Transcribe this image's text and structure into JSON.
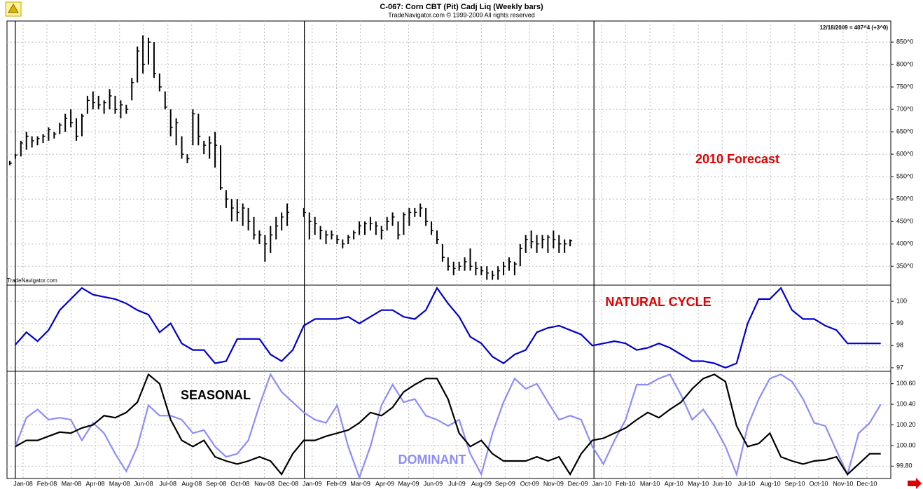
{
  "chart_data": [
    {
      "type": "ohlc",
      "title": "C-067:  Corn CBT (Pit) Cadj Liq  (Weekly bars)",
      "subtitle": "TradeNavigator.com © 1999-2009 All rights reserved",
      "last_quote": "12/18/2009 = 407^4 (+3^0)",
      "watermark": "TradeNavigator.com",
      "color": "#000000",
      "year_lines": [
        0,
        52.1,
        104.3
      ],
      "xlim": [
        -1.5,
        157.8
      ],
      "ylim": [
        308,
        897
      ],
      "yticks": [
        {
          "value": 350,
          "label": "350^0"
        },
        {
          "value": 400,
          "label": "400^0"
        },
        {
          "value": 450,
          "label": "450^0"
        },
        {
          "value": 500,
          "label": "500^0"
        },
        {
          "value": 550,
          "label": "550^0"
        },
        {
          "value": 600,
          "label": "600^0"
        },
        {
          "value": 650,
          "label": "650^0"
        },
        {
          "value": 700,
          "label": "700^0"
        },
        {
          "value": 750,
          "label": "750^0"
        },
        {
          "value": 800,
          "label": "800^0"
        },
        {
          "value": 850,
          "label": "850^0"
        }
      ],
      "annotations": [
        {
          "text": "2010 Forecast",
          "color": "#e00000"
        }
      ],
      "x": [
        -1,
        0,
        1,
        2,
        3,
        4,
        5,
        6,
        7,
        8,
        9,
        10,
        11,
        12,
        13,
        14,
        15,
        16,
        17,
        18,
        19,
        20,
        21,
        22,
        23,
        24,
        25,
        26,
        27,
        28,
        29,
        30,
        31,
        32,
        33,
        34,
        35,
        36,
        37,
        38,
        39,
        40,
        41,
        42,
        43,
        44,
        45,
        46,
        47,
        48,
        49,
        52,
        53,
        54,
        55,
        56,
        57,
        58,
        59,
        60,
        61,
        62,
        63,
        64,
        65,
        66,
        67,
        68,
        69,
        70,
        71,
        72,
        73,
        74,
        75,
        76,
        77,
        78,
        79,
        80,
        81,
        82,
        83,
        84,
        85,
        86,
        87,
        88,
        89,
        90,
        91,
        92,
        93,
        94,
        95,
        96,
        97,
        98,
        99,
        100
      ],
      "high": [
        585,
        600,
        630,
        650,
        640,
        640,
        645,
        660,
        650,
        670,
        690,
        700,
        680,
        690,
        730,
        740,
        730,
        720,
        745,
        730,
        720,
        710,
        770,
        840,
        865,
        860,
        850,
        780,
        740,
        700,
        680,
        640,
        600,
        700,
        690,
        630,
        640,
        650,
        620,
        520,
        500,
        500,
        490,
        480,
        460,
        430,
        420,
        440,
        460,
        470,
        490,
        480,
        470,
        460,
        440,
        430,
        430,
        420,
        410,
        420,
        430,
        450,
        450,
        460,
        450,
        440,
        460,
        470,
        450,
        470,
        480,
        480,
        490,
        480,
        450,
        430,
        400,
        370,
        360,
        360,
        370,
        390,
        360,
        350,
        350,
        340,
        350,
        360,
        370,
        360,
        400,
        420,
        430,
        420,
        420,
        420,
        430,
        420,
        410,
        410
      ],
      "low": [
        575,
        590,
        595,
        610,
        615,
        620,
        625,
        630,
        635,
        645,
        650,
        660,
        630,
        640,
        690,
        700,
        700,
        690,
        700,
        690,
        680,
        690,
        720,
        760,
        780,
        800,
        770,
        740,
        700,
        640,
        620,
        590,
        580,
        620,
        620,
        600,
        590,
        570,
        520,
        480,
        450,
        450,
        440,
        430,
        410,
        400,
        360,
        380,
        410,
        430,
        440,
        460,
        410,
        420,
        410,
        400,
        410,
        400,
        390,
        400,
        410,
        420,
        420,
        430,
        420,
        410,
        430,
        440,
        410,
        420,
        440,
        460,
        460,
        440,
        420,
        400,
        360,
        340,
        330,
        340,
        340,
        340,
        330,
        330,
        320,
        320,
        320,
        330,
        340,
        330,
        350,
        380,
        390,
        380,
        390,
        380,
        390,
        380,
        380,
        395
      ],
      "close": [
        580,
        598,
        625,
        640,
        630,
        635,
        640,
        655,
        645,
        665,
        680,
        670,
        640,
        685,
        720,
        715,
        710,
        715,
        730,
        700,
        710,
        700,
        760,
        830,
        800,
        850,
        780,
        750,
        705,
        660,
        670,
        600,
        590,
        690,
        640,
        620,
        625,
        620,
        525,
        500,
        480,
        470,
        480,
        450,
        420,
        420,
        400,
        420,
        440,
        460,
        470,
        470,
        450,
        445,
        430,
        420,
        420,
        410,
        400,
        415,
        425,
        440,
        445,
        445,
        440,
        430,
        450,
        460,
        420,
        465,
        470,
        470,
        480,
        450,
        430,
        410,
        370,
        350,
        345,
        350,
        360,
        350,
        345,
        340,
        335,
        330,
        340,
        350,
        360,
        355,
        390,
        410,
        405,
        400,
        410,
        415,
        410,
        400,
        400,
        407
      ]
    },
    {
      "type": "line",
      "xlim": [
        -1.5,
        157.8
      ],
      "ylim": [
        96.84,
        100.73
      ],
      "yticks": [
        97,
        98,
        99,
        100
      ],
      "annotations": [
        {
          "text": "NATURAL CYCLE",
          "color": "#e00000"
        }
      ],
      "x": [
        0,
        2,
        4,
        6,
        8,
        10,
        12,
        14,
        16,
        18,
        20,
        22,
        24,
        26,
        28,
        30,
        32,
        34,
        36,
        38,
        40,
        42,
        44,
        46,
        48,
        50,
        52,
        54,
        56,
        58,
        60,
        62,
        64,
        66,
        68,
        70,
        72,
        74,
        76,
        78,
        80,
        82,
        84,
        86,
        88,
        90,
        92,
        94,
        96,
        98,
        100,
        102,
        104,
        106,
        108,
        110,
        112,
        114,
        116,
        118,
        120,
        122,
        124,
        126,
        128,
        130,
        132,
        134,
        136,
        138,
        140,
        142,
        144,
        146,
        148,
        150,
        152,
        154,
        156
      ],
      "series": [
        {
          "color": "#0000cc",
          "values": [
            98.04,
            98.6,
            98.2,
            98.7,
            99.6,
            100.1,
            100.6,
            100.3,
            100.2,
            100.1,
            99.9,
            99.6,
            99.4,
            98.6,
            99.0,
            98.1,
            97.8,
            97.8,
            97.2,
            97.3,
            98.3,
            98.3,
            98.3,
            97.6,
            97.3,
            97.8,
            98.9,
            99.2,
            99.2,
            99.2,
            99.3,
            99.0,
            99.3,
            99.6,
            99.6,
            99.3,
            99.2,
            99.6,
            100.6,
            99.9,
            99.3,
            98.4,
            98.1,
            97.5,
            97.2,
            97.6,
            97.8,
            98.6,
            98.8,
            98.9,
            98.7,
            98.5,
            98.0,
            98.1,
            98.2,
            98.1,
            97.8,
            97.9,
            98.1,
            97.9,
            97.6,
            97.3,
            97.3,
            97.2,
            97.0,
            97.2,
            99.0,
            100.1,
            100.1,
            100.6,
            99.6,
            99.2,
            99.2,
            98.9,
            98.7,
            98.1,
            98.1,
            98.1,
            98.1
          ]
        }
      ]
    },
    {
      "type": "line",
      "xlim": [
        -1.5,
        157.8
      ],
      "ylim": [
        99.68,
        100.72
      ],
      "yticks": [
        {
          "value": 99.8,
          "label": "99.80"
        },
        {
          "value": 100,
          "label": "100.00"
        },
        {
          "value": 100.2,
          "label": "100.20"
        },
        {
          "value": 100.4,
          "label": "100.40"
        },
        {
          "value": 100.6,
          "label": "100.60"
        }
      ],
      "annotations": [
        {
          "text": "SEASONAL",
          "color": "#000000"
        },
        {
          "text": "DOMINANT",
          "color": "#8c8cff"
        }
      ],
      "xticks": [
        {
          "value": 1.4,
          "label": "Jan-08"
        },
        {
          "value": 5.7,
          "label": "Feb-08"
        },
        {
          "value": 10.1,
          "label": "Mar-08"
        },
        {
          "value": 14.4,
          "label": "Apr-08"
        },
        {
          "value": 18.8,
          "label": "May-08"
        },
        {
          "value": 23.1,
          "label": "Jun-08"
        },
        {
          "value": 27.5,
          "label": "Jul-08"
        },
        {
          "value": 31.8,
          "label": "Aug-08"
        },
        {
          "value": 36.2,
          "label": "Sep-08"
        },
        {
          "value": 40.5,
          "label": "Oct-08"
        },
        {
          "value": 44.9,
          "label": "Nov-08"
        },
        {
          "value": 49.2,
          "label": "Dec-08"
        },
        {
          "value": 53.5,
          "label": "Jan-09"
        },
        {
          "value": 57.9,
          "label": "Feb-09"
        },
        {
          "value": 62.2,
          "label": "Mar-09"
        },
        {
          "value": 66.6,
          "label": "Apr-09"
        },
        {
          "value": 70.9,
          "label": "May-09"
        },
        {
          "value": 75.3,
          "label": "Jun-09"
        },
        {
          "value": 79.6,
          "label": "Jul-09"
        },
        {
          "value": 84.0,
          "label": "Aug-09"
        },
        {
          "value": 88.3,
          "label": "Sep-09"
        },
        {
          "value": 92.7,
          "label": "Oct-09"
        },
        {
          "value": 97.0,
          "label": "Nov-09"
        },
        {
          "value": 101.4,
          "label": "Dec-09"
        },
        {
          "value": 105.7,
          "label": "Jan-10"
        },
        {
          "value": 110.0,
          "label": "Feb-10"
        },
        {
          "value": 114.4,
          "label": "Mar-10"
        },
        {
          "value": 118.7,
          "label": "Apr-10"
        },
        {
          "value": 123.1,
          "label": "May-10"
        },
        {
          "value": 127.4,
          "label": "Jun-10"
        },
        {
          "value": 131.8,
          "label": "Jul-10"
        },
        {
          "value": 136.1,
          "label": "Aug-10"
        },
        {
          "value": 140.5,
          "label": "Sep-10"
        },
        {
          "value": 144.8,
          "label": "Oct-10"
        },
        {
          "value": 149.2,
          "label": "Nov-10"
        },
        {
          "value": 153.5,
          "label": "Dec-10"
        }
      ],
      "x": [
        0,
        2,
        4,
        6,
        8,
        10,
        12,
        14,
        16,
        18,
        20,
        22,
        24,
        26,
        28,
        30,
        32,
        34,
        36,
        38,
        40,
        42,
        44,
        46,
        48,
        50,
        52,
        54,
        56,
        58,
        60,
        62,
        64,
        66,
        68,
        70,
        72,
        74,
        76,
        78,
        80,
        82,
        84,
        86,
        88,
        90,
        92,
        94,
        96,
        98,
        100,
        102,
        104,
        106,
        108,
        110,
        112,
        114,
        116,
        118,
        120,
        122,
        124,
        126,
        128,
        130,
        132,
        134,
        136,
        138,
        140,
        142,
        144,
        146,
        148,
        150,
        152,
        154,
        156
      ],
      "series": [
        {
          "color": "#8c8cff",
          "values": [
            99.99,
            100.27,
            100.35,
            100.25,
            100.27,
            100.25,
            100.05,
            100.22,
            100.12,
            99.92,
            99.75,
            99.99,
            100.39,
            100.29,
            100.29,
            100.25,
            100.12,
            100.15,
            99.99,
            99.89,
            99.92,
            100.05,
            100.39,
            100.69,
            100.52,
            100.42,
            100.32,
            100.25,
            100.22,
            100.39,
            99.99,
            99.69,
            99.99,
            100.39,
            100.59,
            100.42,
            100.45,
            100.29,
            100.25,
            100.19,
            100.25,
            99.92,
            99.72,
            100.12,
            100.42,
            100.65,
            100.55,
            100.6,
            100.42,
            100.25,
            100.29,
            100.25,
            99.99,
            99.82,
            100.05,
            100.25,
            100.59,
            100.59,
            100.65,
            100.69,
            100.49,
            100.25,
            100.35,
            100.19,
            99.99,
            99.72,
            100.19,
            100.45,
            100.65,
            100.69,
            100.62,
            100.45,
            100.22,
            100.19,
            99.95,
            99.72,
            100.12,
            100.22,
            100.4
          ]
        },
        {
          "color": "#000000",
          "values": [
            99.99,
            100.05,
            100.05,
            100.09,
            100.13,
            100.12,
            100.17,
            100.2,
            100.29,
            100.27,
            100.32,
            100.42,
            100.69,
            100.6,
            100.25,
            100.05,
            99.99,
            100.05,
            99.89,
            99.85,
            99.82,
            99.85,
            99.89,
            99.85,
            99.72,
            99.92,
            100.05,
            100.05,
            100.09,
            100.12,
            100.15,
            100.22,
            100.32,
            100.29,
            100.37,
            100.52,
            100.59,
            100.65,
            100.65,
            100.45,
            100.12,
            99.99,
            100.05,
            99.92,
            99.85,
            99.85,
            99.85,
            99.89,
            99.85,
            99.89,
            99.72,
            99.92,
            100.05,
            100.07,
            100.12,
            100.17,
            100.25,
            100.32,
            100.27,
            100.35,
            100.42,
            100.55,
            100.65,
            100.69,
            100.62,
            100.19,
            99.99,
            100.02,
            100.12,
            99.89,
            99.85,
            99.82,
            99.85,
            99.86,
            99.89,
            99.72,
            99.82,
            99.92,
            99.92
          ]
        }
      ]
    }
  ]
}
